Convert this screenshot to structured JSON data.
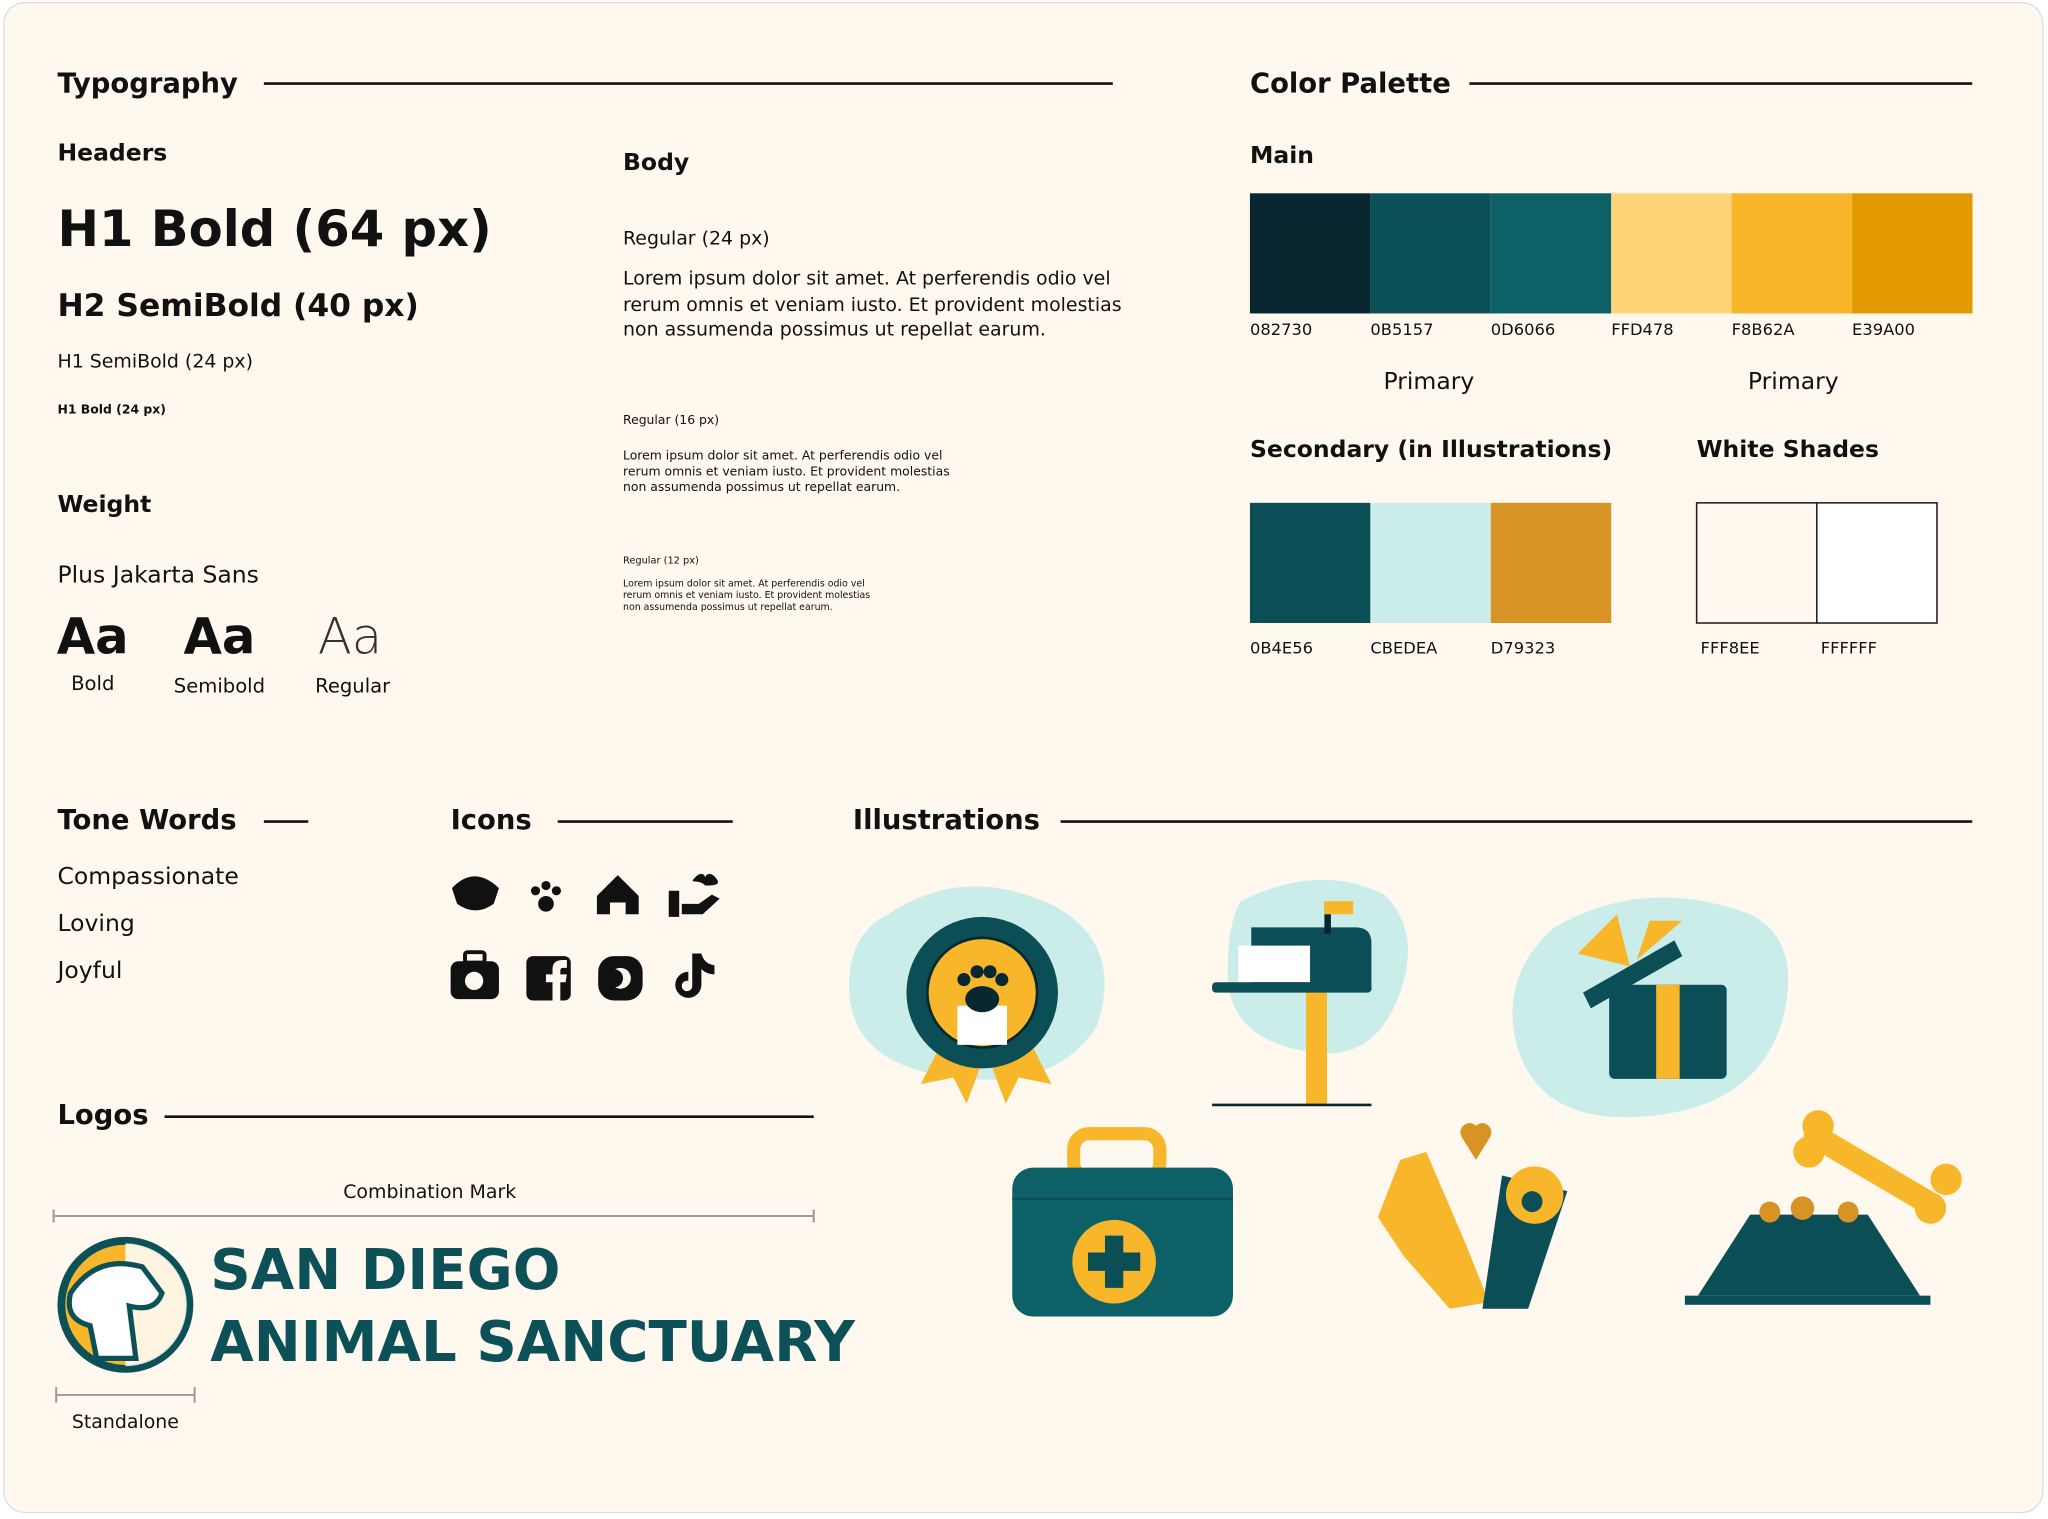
{
  "typography": {
    "title": "Typography",
    "headers_label": "Headers",
    "headers": [
      "H1 Bold (64 px)",
      "H2 SemiBold (40 px)",
      "H1 SemiBold (24 px)",
      "H1 Bold (24 px)"
    ],
    "body_label": "Body",
    "body": [
      {
        "label": "Regular (24 px)",
        "text": "Lorem ipsum dolor sit amet. At perferendis odio vel rerum omnis et veniam iusto. Et provident molestias non assumenda possimus ut repellat earum."
      },
      {
        "label": "Regular (16 px)",
        "text": "Lorem ipsum dolor sit amet. At perferendis odio vel rerum omnis et veniam iusto. Et provident molestias non assumenda possimus ut repellat earum."
      },
      {
        "label": "Regular (12 px)",
        "text": "Lorem ipsum dolor sit amet. At perferendis odio vel rerum omnis et veniam iusto. Et provident molestias non assumenda possimus ut repellat earum."
      }
    ],
    "weight_label": "Weight",
    "font": "Plus Jakarta Sans",
    "samples": [
      {
        "glyph": "Aa",
        "label": "Bold"
      },
      {
        "glyph": "Aa",
        "label": "Semibold"
      },
      {
        "glyph": "Aa",
        "label": "Regular"
      }
    ]
  },
  "color_palette": {
    "title": "Color Palette",
    "main_label": "Main",
    "main": [
      "082730",
      "0B5157",
      "0D6066",
      "FFD478",
      "F8B62A",
      "E39A00"
    ],
    "main_groups": [
      "Primary",
      "Primary"
    ],
    "secondary_label": "Secondary (in Illustrations)",
    "secondary": [
      "0B4E56",
      "CBEDEA",
      "D79323"
    ],
    "white_label": "White Shades",
    "white": [
      "FFF8EE",
      "FFFFFF"
    ]
  },
  "tone_words": {
    "title": "Tone Words",
    "words": [
      "Compassionate",
      "Loving",
      "Joyful"
    ]
  },
  "icons": {
    "title": "Icons"
  },
  "illustrations": {
    "title": "Illustrations"
  },
  "logos": {
    "title": "Logos",
    "combination_label": "Combination Mark",
    "name_lines": [
      "SAN DIEGO",
      "ANIMAL SANCTUARY"
    ],
    "standalone_label": "Standalone"
  }
}
